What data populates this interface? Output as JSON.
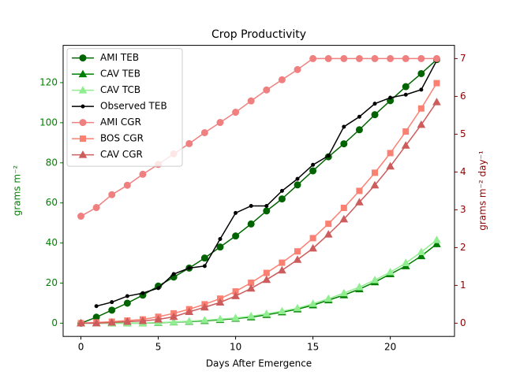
{
  "chart_data": {
    "type": "line",
    "title": "Crop Productivity",
    "xlabel": "Days After Emergence",
    "ylabel": "grams m⁻²",
    "y2label": "grams m⁻² day⁻¹",
    "xlim": [
      -1.15,
      24.15
    ],
    "xticks": [
      0,
      5,
      10,
      15,
      20
    ],
    "ylim": [
      -6.6,
      138.6
    ],
    "yticks": [
      0,
      20,
      40,
      60,
      80,
      100,
      120
    ],
    "y2lim": [
      -0.35,
      7.35
    ],
    "y2ticks": [
      0,
      1,
      2,
      3,
      4,
      5,
      6,
      7
    ],
    "ylabel_color": "green",
    "y2label_color": "darkred",
    "legend": "upper left",
    "x": [
      0,
      1,
      2,
      3,
      4,
      5,
      6,
      7,
      8,
      9,
      10,
      11,
      12,
      13,
      14,
      15,
      16,
      17,
      18,
      19,
      20,
      21,
      22,
      23
    ],
    "series": [
      {
        "name": "AMI TEB",
        "color": "#006400",
        "marker": "circle",
        "values": [
          0,
          3,
          6.5,
          10,
          14,
          18.5,
          23,
          27.5,
          32.5,
          38,
          43.5,
          49.5,
          56,
          62,
          69,
          76,
          83,
          89.5,
          96.5,
          104,
          111,
          118,
          124.5,
          131.5
        ]
      },
      {
        "name": "CAV TEB",
        "color": "#008000",
        "marker": "triangle",
        "values": [
          0,
          0,
          0,
          0,
          0,
          0.2,
          0.5,
          0.8,
          1.2,
          1.7,
          2.3,
          3,
          4.2,
          5.5,
          7,
          9,
          11.5,
          14,
          17,
          20.5,
          24.5,
          28.5,
          33.5,
          39.5
        ]
      },
      {
        "name": "CAV TCB",
        "color": "#90ee90",
        "marker": "triangle",
        "values": [
          0,
          0,
          0,
          0,
          0,
          0.3,
          0.6,
          1,
          1.5,
          2,
          2.6,
          3.5,
          4.7,
          6,
          7.5,
          9.7,
          12.2,
          15,
          18,
          21.5,
          25.5,
          30,
          35.5,
          41.5
        ]
      },
      {
        "name": "Observed TEB",
        "color": "#000000",
        "marker": "dot",
        "values": [
          null,
          8.5,
          10.5,
          13.5,
          15,
          17.5,
          24.5,
          27.5,
          28.5,
          42,
          55,
          58.5,
          58.5,
          66,
          72,
          79,
          83.5,
          98,
          103,
          109.5,
          112.5,
          114,
          116.5,
          131
        ]
      },
      {
        "name": "AMI CGR",
        "color": "#f08080",
        "marker": "circle",
        "axis": "y2",
        "values": [
          2.83,
          3.06,
          3.4,
          3.65,
          3.94,
          4.2,
          4.48,
          4.75,
          5.04,
          5.31,
          5.58,
          5.88,
          6.17,
          6.44,
          6.71,
          7,
          7,
          7,
          7,
          7,
          7,
          7,
          7,
          7
        ]
      },
      {
        "name": "BOS CGR",
        "color": "#fa8072",
        "marker": "square",
        "axis": "y2",
        "values": [
          0,
          0.02,
          0.04,
          0.07,
          0.1,
          0.17,
          0.26,
          0.37,
          0.5,
          0.65,
          0.84,
          1.07,
          1.33,
          1.6,
          1.9,
          2.25,
          2.63,
          3.05,
          3.5,
          3.98,
          4.5,
          5.07,
          5.68,
          6.35
        ]
      },
      {
        "name": "CAV CGR",
        "color": "#cd5c5c",
        "marker": "triangle",
        "axis": "y2",
        "values": [
          0,
          0,
          0.02,
          0.04,
          0.06,
          0.1,
          0.17,
          0.3,
          0.42,
          0.55,
          0.72,
          0.92,
          1.15,
          1.4,
          1.68,
          1.98,
          2.35,
          2.75,
          3.2,
          3.65,
          4.15,
          4.7,
          5.25,
          5.85
        ]
      }
    ]
  }
}
